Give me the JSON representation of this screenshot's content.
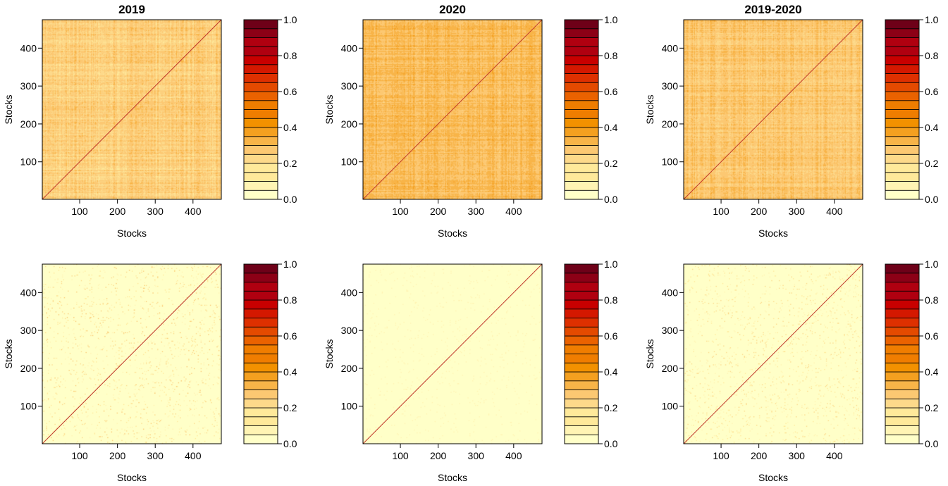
{
  "colors": {
    "background": "#ffffff",
    "frame": "#000000",
    "diagonal": "#c0392b",
    "palette": [
      "#ffffc8",
      "#fff4b4",
      "#ffe99a",
      "#fdd98a",
      "#fcc872",
      "#f8b448",
      "#f4a020",
      "#f29100",
      "#ef7d00",
      "#ea6200",
      "#e44a00",
      "#de3000",
      "#d41800",
      "#c80000",
      "#b00010",
      "#8c0016",
      "#6e0018"
    ]
  },
  "chart_data": [
    {
      "type": "heatmap",
      "title": "2019",
      "xlabel": "Stocks",
      "ylabel": "Stocks",
      "xlim": [
        1,
        475
      ],
      "ylim": [
        1,
        475
      ],
      "xticks": [
        100,
        200,
        300,
        400
      ],
      "yticks": [
        100,
        200,
        300,
        400
      ],
      "matrix_size": 475,
      "diagonal_value": 1.0,
      "offdiag_mean": 0.24,
      "offdiag_spread": 0.07,
      "colorbar": {
        "range": [
          0.0,
          1.0
        ],
        "ticks": [
          0.0,
          0.2,
          0.4,
          0.6,
          0.8,
          1.0
        ],
        "tick_labels": [
          "0.0",
          "0.2",
          "0.4",
          "0.6",
          "0.8",
          "1.0"
        ],
        "n_levels": 20
      }
    },
    {
      "type": "heatmap",
      "title": "2020",
      "xlabel": "Stocks",
      "ylabel": "Stocks",
      "xlim": [
        1,
        475
      ],
      "ylim": [
        1,
        475
      ],
      "xticks": [
        100,
        200,
        300,
        400
      ],
      "yticks": [
        100,
        200,
        300,
        400
      ],
      "matrix_size": 475,
      "diagonal_value": 1.0,
      "offdiag_mean": 0.3,
      "offdiag_spread": 0.06,
      "colorbar": {
        "range": [
          0.0,
          1.0
        ],
        "ticks": [
          0.0,
          0.2,
          0.4,
          0.6,
          0.8,
          1.0
        ],
        "tick_labels": [
          "0.0",
          "0.2",
          "0.4",
          "0.6",
          "0.8",
          "1.0"
        ],
        "n_levels": 20
      }
    },
    {
      "type": "heatmap",
      "title": "2019-2020",
      "xlabel": "Stocks",
      "ylabel": "Stocks",
      "xlim": [
        1,
        475
      ],
      "ylim": [
        1,
        475
      ],
      "xticks": [
        100,
        200,
        300,
        400
      ],
      "yticks": [
        100,
        200,
        300,
        400
      ],
      "matrix_size": 475,
      "diagonal_value": 1.0,
      "offdiag_mean": 0.27,
      "offdiag_spread": 0.065,
      "colorbar": {
        "range": [
          0.0,
          1.0
        ],
        "ticks": [
          0.0,
          0.2,
          0.4,
          0.6,
          0.8,
          1.0
        ],
        "tick_labels": [
          "0.0",
          "0.2",
          "0.4",
          "0.6",
          "0.8",
          "1.0"
        ],
        "n_levels": 20
      }
    },
    {
      "type": "heatmap",
      "title": "",
      "xlabel": "Stocks",
      "ylabel": "Stocks",
      "xlim": [
        1,
        475
      ],
      "ylim": [
        1,
        475
      ],
      "xticks": [
        100,
        200,
        300,
        400
      ],
      "yticks": [
        100,
        200,
        300,
        400
      ],
      "matrix_size": 475,
      "diagonal_value": 1.0,
      "offdiag_mean": 0.02,
      "offdiag_spread": 0.04,
      "colorbar": {
        "range": [
          0.0,
          1.0
        ],
        "ticks": [
          0.0,
          0.2,
          0.4,
          0.6,
          0.8,
          1.0
        ],
        "tick_labels": [
          "0.0",
          "0.2",
          "0.4",
          "0.6",
          "0.8",
          "1.0"
        ],
        "n_levels": 20
      }
    },
    {
      "type": "heatmap",
      "title": "",
      "xlabel": "Stocks",
      "ylabel": "Stocks",
      "xlim": [
        1,
        475
      ],
      "ylim": [
        1,
        475
      ],
      "xticks": [
        100,
        200,
        300,
        400
      ],
      "yticks": [
        100,
        200,
        300,
        400
      ],
      "matrix_size": 475,
      "diagonal_value": 1.0,
      "offdiag_mean": 0.005,
      "offdiag_spread": 0.015,
      "colorbar": {
        "range": [
          0.0,
          1.0
        ],
        "ticks": [
          0.0,
          0.2,
          0.4,
          0.6,
          0.8,
          1.0
        ],
        "tick_labels": [
          "0.0",
          "0.2",
          "0.4",
          "0.6",
          "0.8",
          "1.0"
        ],
        "n_levels": 20
      }
    },
    {
      "type": "heatmap",
      "title": "",
      "xlabel": "Stocks",
      "ylabel": "Stocks",
      "xlim": [
        1,
        475
      ],
      "ylim": [
        1,
        475
      ],
      "xticks": [
        100,
        200,
        300,
        400
      ],
      "yticks": [
        100,
        200,
        300,
        400
      ],
      "matrix_size": 475,
      "diagonal_value": 1.0,
      "offdiag_mean": 0.015,
      "offdiag_spread": 0.035,
      "colorbar": {
        "range": [
          0.0,
          1.0
        ],
        "ticks": [
          0.0,
          0.2,
          0.4,
          0.6,
          0.8,
          1.0
        ],
        "tick_labels": [
          "0.0",
          "0.2",
          "0.4",
          "0.6",
          "0.8",
          "1.0"
        ],
        "n_levels": 20
      }
    }
  ]
}
